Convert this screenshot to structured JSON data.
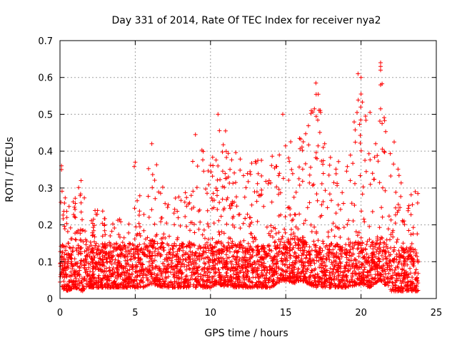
{
  "chart_data": {
    "type": "scatter",
    "title": "Day 331 of 2014, Rate Of TEC Index for receiver nya2",
    "xlabel": "GPS time / hours",
    "ylabel": "ROTI / TECUs",
    "xlim": [
      0,
      25
    ],
    "ylim": [
      0,
      0.7
    ],
    "x_ticks": [
      "0",
      "5",
      "10",
      "15",
      "20",
      "25"
    ],
    "y_ticks": [
      "0",
      "0.1",
      "0.2",
      "0.3",
      "0.4",
      "0.5",
      "0.6",
      "0.7"
    ],
    "grid": true,
    "marker": "plus",
    "colors": {
      "points": "#ff0000",
      "grid": "#a0a0a0",
      "axes": "#000000"
    },
    "series": [
      {
        "x_range": [
          0,
          23.8
        ],
        "envelope": [
          [
            0.0,
            0.03,
            0.36
          ],
          [
            0.5,
            0.02,
            0.24
          ],
          [
            1.0,
            0.03,
            0.32
          ],
          [
            1.5,
            0.02,
            0.29
          ],
          [
            2.0,
            0.03,
            0.24
          ],
          [
            3.0,
            0.03,
            0.24
          ],
          [
            4.0,
            0.03,
            0.23
          ],
          [
            5.0,
            0.03,
            0.37
          ],
          [
            5.5,
            0.03,
            0.23
          ],
          [
            6.0,
            0.04,
            0.42
          ],
          [
            7.0,
            0.03,
            0.31
          ],
          [
            8.0,
            0.03,
            0.3
          ],
          [
            9.0,
            0.03,
            0.44
          ],
          [
            10.0,
            0.03,
            0.37
          ],
          [
            10.5,
            0.04,
            0.5
          ],
          [
            11.0,
            0.03,
            0.45
          ],
          [
            12.0,
            0.03,
            0.4
          ],
          [
            13.0,
            0.03,
            0.4
          ],
          [
            14.0,
            0.03,
            0.4
          ],
          [
            14.8,
            0.05,
            0.5
          ],
          [
            15.5,
            0.04,
            0.46
          ],
          [
            16.0,
            0.05,
            0.45
          ],
          [
            16.5,
            0.04,
            0.51
          ],
          [
            17.0,
            0.03,
            0.58
          ],
          [
            18.0,
            0.03,
            0.44
          ],
          [
            19.0,
            0.03,
            0.35
          ],
          [
            20.0,
            0.04,
            0.61
          ],
          [
            20.5,
            0.03,
            0.43
          ],
          [
            21.0,
            0.04,
            0.45
          ],
          [
            21.3,
            0.05,
            0.64
          ],
          [
            22.0,
            0.02,
            0.43
          ],
          [
            23.0,
            0.02,
            0.29
          ],
          [
            23.8,
            0.02,
            0.29
          ]
        ],
        "outliers": [
          [
            0.1,
            0.36
          ],
          [
            0.1,
            0.35
          ],
          [
            1.4,
            0.32
          ],
          [
            5.0,
            0.37
          ],
          [
            6.1,
            0.42
          ],
          [
            9.0,
            0.445
          ],
          [
            10.5,
            0.5
          ],
          [
            11.0,
            0.455
          ],
          [
            14.8,
            0.5
          ],
          [
            16.7,
            0.51
          ],
          [
            16.9,
            0.515
          ],
          [
            17.0,
            0.585
          ],
          [
            19.8,
            0.61
          ],
          [
            20.0,
            0.6
          ],
          [
            20.0,
            0.555
          ],
          [
            20.3,
            0.495
          ],
          [
            20.6,
            0.505
          ],
          [
            21.3,
            0.64
          ],
          [
            21.3,
            0.63
          ],
          [
            21.3,
            0.62
          ],
          [
            21.3,
            0.58
          ],
          [
            21.3,
            0.515
          ],
          [
            21.4,
            0.475
          ],
          [
            22.2,
            0.425
          ],
          [
            23.6,
            0.29
          ]
        ]
      }
    ]
  }
}
